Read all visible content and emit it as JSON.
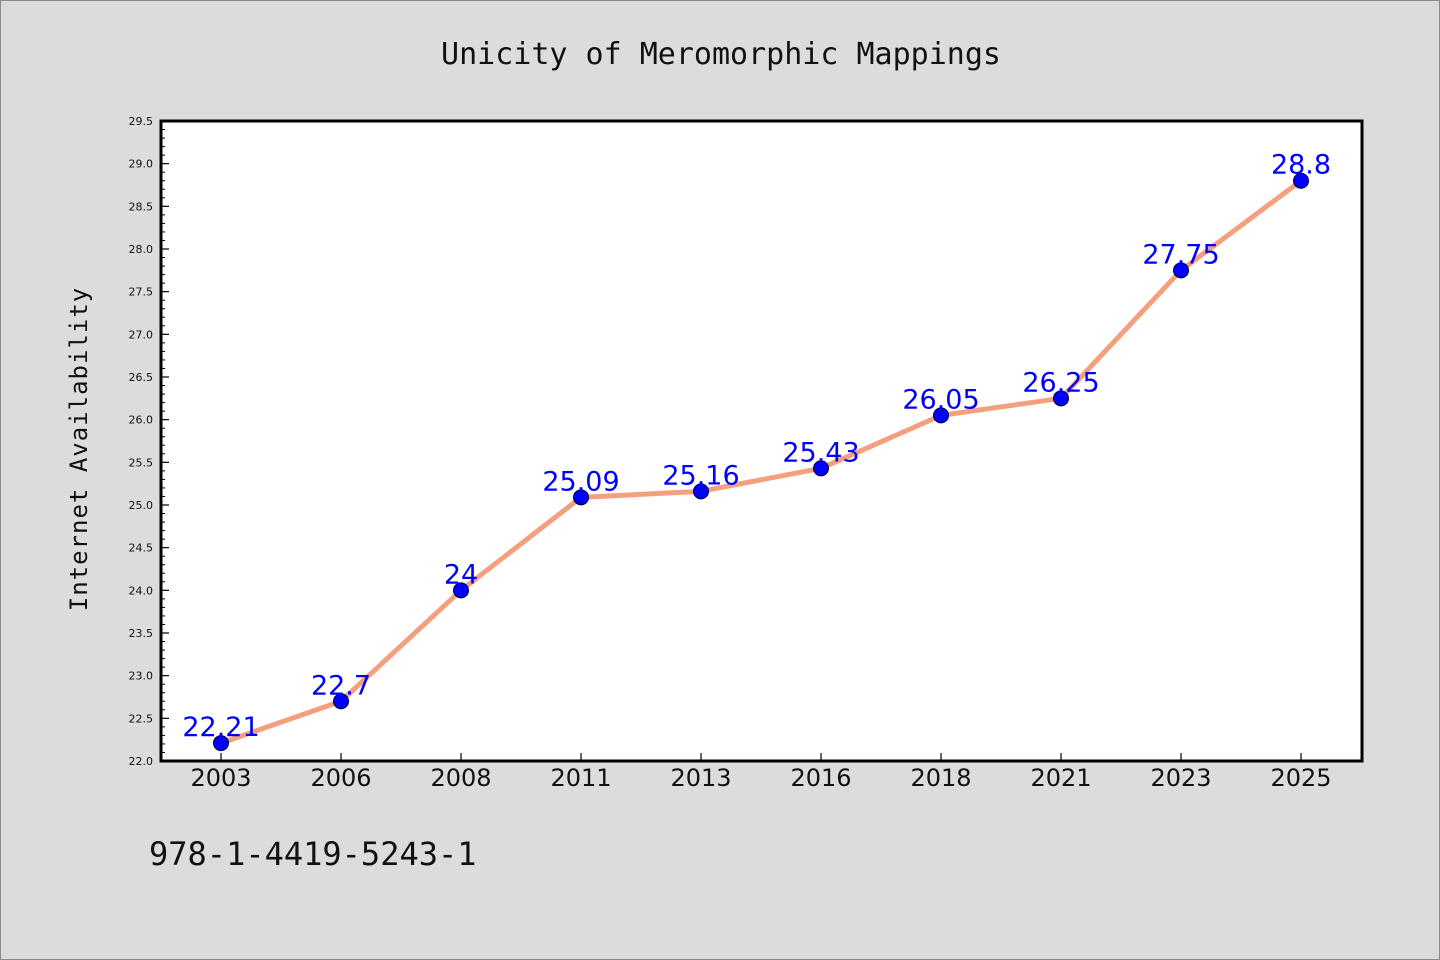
{
  "chart_data": {
    "type": "line",
    "title": "Unicity of Meromorphic Mappings",
    "xlabel": "",
    "ylabel": "Internet Availability",
    "categories": [
      "2003",
      "2006",
      "2008",
      "2011",
      "2013",
      "2016",
      "2018",
      "2021",
      "2023",
      "2025"
    ],
    "values": [
      22.21,
      22.7,
      24,
      25.09,
      25.16,
      25.43,
      26.05,
      26.25,
      27.75,
      28.8
    ],
    "data_labels": [
      "22.21",
      "22.7",
      "24",
      "25.09",
      "25.16",
      "25.43",
      "26.05",
      "26.25",
      "27.75",
      "28.8"
    ],
    "ylim": [
      22.0,
      29.5
    ],
    "yticks": [
      "22.0",
      "22.5",
      "23.0",
      "23.5",
      "24.0",
      "24.5",
      "25.0",
      "25.5",
      "26.0",
      "26.5",
      "27.0",
      "27.5",
      "28.0",
      "28.5",
      "29.0",
      "29.5"
    ],
    "grid": false,
    "legend": "none",
    "line_color": "#f4a07e",
    "marker_color": "#0000ff",
    "label_color": "#0000ff",
    "background_color": "#dcdcdc",
    "plot_background_color": "#ffffff"
  },
  "footnote": "978-1-4419-5243-1"
}
